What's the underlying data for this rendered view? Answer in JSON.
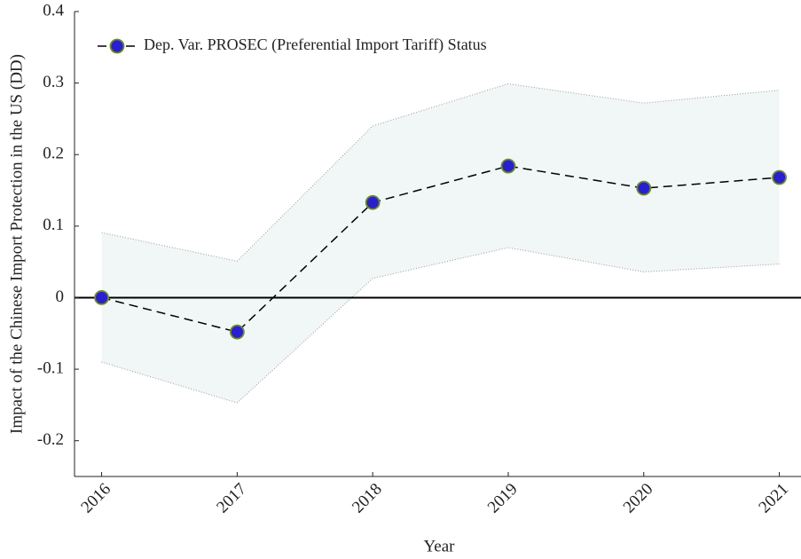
{
  "chart_data": {
    "type": "line",
    "xlabel": "Year",
    "ylabel": "Impact of the Chinese Import Protection in the US (DD)",
    "x": [
      2016,
      2017,
      2018,
      2019,
      2020,
      2021
    ],
    "series": [
      {
        "name": "Dep. Var. PROSEC (Preferential Import Tariff) Status",
        "color": "#2a1fd0",
        "edge_color": "#6b8e23",
        "values": [
          0,
          -0.048,
          0.133,
          0.184,
          0.153,
          0.168
        ],
        "lower": [
          -0.09,
          -0.147,
          0.027,
          0.07,
          0.036,
          0.047
        ],
        "upper": [
          0.091,
          0.051,
          0.24,
          0.299,
          0.272,
          0.29
        ]
      }
    ],
    "band_color": "#f1f7f7",
    "hline": 0,
    "xlim": [
      2015.8,
      2021.16
    ],
    "ylim": [
      -0.25,
      0.4
    ],
    "xticks": [
      2016,
      2017,
      2018,
      2019,
      2020,
      2021
    ],
    "yticks": [
      -0.2,
      -0.1,
      0,
      0.1,
      0.2,
      0.3,
      0.4
    ],
    "legend": "upper-left"
  }
}
